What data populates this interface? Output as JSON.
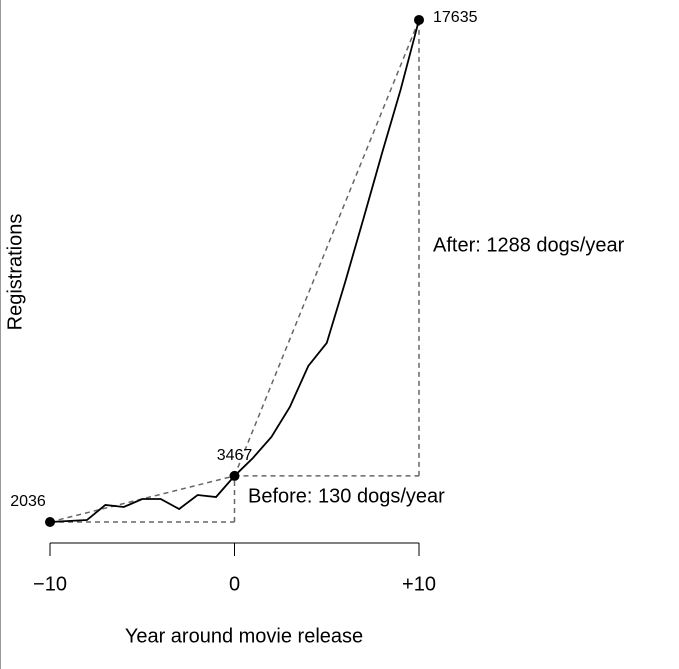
{
  "chart_data": {
    "type": "line",
    "xlabel": "Year around movie release",
    "ylabel": "Registrations",
    "x": [
      -10,
      -9,
      -8,
      -7,
      -6,
      -5,
      -4,
      -3,
      -2,
      -1,
      0,
      1,
      2,
      3,
      4,
      5,
      6,
      7,
      8,
      9,
      10
    ],
    "series": [
      {
        "color": "#000000",
        "values": [
          2036,
          2066,
          2097,
          2564,
          2502,
          2750,
          2750,
          2439,
          2874,
          2812,
          3467,
          4024,
          4677,
          5609,
          6883,
          7598,
          9494,
          11483,
          13503,
          15460,
          17635
        ]
      }
    ],
    "points": [
      {
        "x": -10,
        "y": 2036
      },
      {
        "x": 0,
        "y": 3467
      },
      {
        "x": 10,
        "y": 17635
      }
    ],
    "annotations": [
      "Before: 130 dogs/year",
      "After: 1288 dogs/year"
    ],
    "xlim": [
      -10,
      10
    ],
    "xticks": [
      {
        "value": -10,
        "label": "−10"
      },
      0,
      {
        "value": 10,
        "label": "+10"
      }
    ],
    "ylim": [
      0,
      18000
    ]
  }
}
